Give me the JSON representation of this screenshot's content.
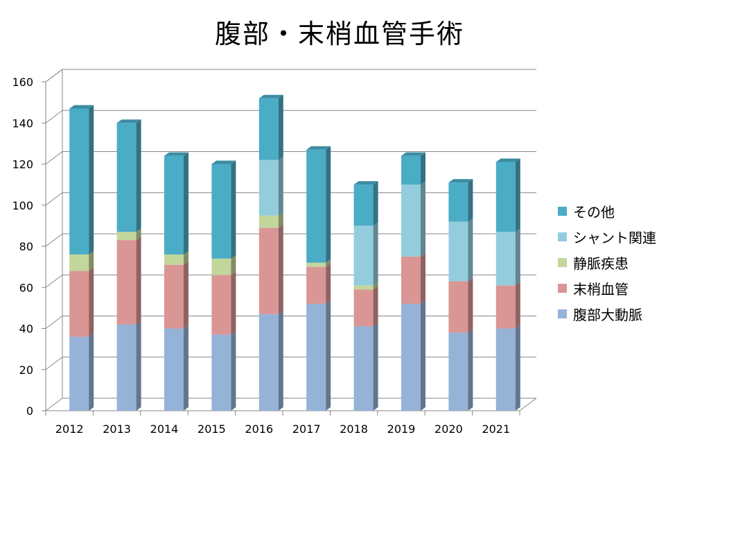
{
  "chart_data": {
    "type": "bar",
    "stacked": true,
    "title": "腹部・末梢血管手術",
    "xlabel": "",
    "ylabel": "",
    "categories": [
      "2012",
      "2013",
      "2014",
      "2015",
      "2016",
      "2017",
      "2018",
      "2019",
      "2020",
      "2021"
    ],
    "ylim": [
      0,
      160
    ],
    "yticks": [
      0,
      20,
      40,
      60,
      80,
      100,
      120,
      140,
      160
    ],
    "grid": true,
    "legend_position": "right",
    "series": [
      {
        "name": "腹部大動脈",
        "color": "#95b3d7",
        "values": [
          36,
          42,
          40,
          37,
          47,
          52,
          41,
          52,
          38,
          40
        ]
      },
      {
        "name": "末梢血管",
        "color": "#d99694",
        "values": [
          32,
          41,
          31,
          29,
          42,
          18,
          18,
          23,
          25,
          21
        ]
      },
      {
        "name": "静脈疾患",
        "color": "#c3d69b",
        "values": [
          8,
          4,
          5,
          8,
          6,
          2,
          2,
          0,
          0,
          0
        ]
      },
      {
        "name": "シャント関連",
        "color": "#93cddd",
        "values": [
          0,
          0,
          0,
          0,
          27,
          0,
          29,
          35,
          29,
          26
        ]
      },
      {
        "name": "その他",
        "color": "#4bacc6",
        "values": [
          71,
          53,
          48,
          46,
          30,
          55,
          20,
          14,
          19,
          34
        ]
      }
    ]
  }
}
